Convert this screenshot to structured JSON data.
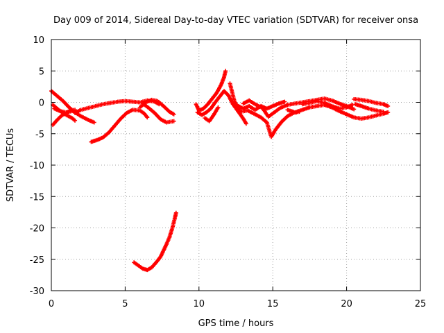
{
  "chart_data": {
    "type": "scatter",
    "title": "Day 009 of 2014, Sidereal Day-to-day VTEC variation (SDTVAR) for receiver onsa",
    "xlabel": "GPS time / hours",
    "ylabel": "SDTVAR / TECUs",
    "xlim": [
      0,
      25
    ],
    "ylim": [
      -30,
      10
    ],
    "x_ticks": [
      0,
      5,
      10,
      15,
      20,
      25
    ],
    "y_ticks": [
      -30,
      -25,
      -20,
      -15,
      -10,
      -5,
      0,
      5,
      10
    ],
    "x_tick_labels": [
      "0",
      "5",
      "10",
      "15",
      "20",
      "25"
    ],
    "y_tick_labels": [
      "-30",
      "-25",
      "-20",
      "-15",
      "-10",
      "-5",
      "0",
      "5",
      "10"
    ],
    "grid": true,
    "marker": "+",
    "series": [
      {
        "name": "SDTVAR",
        "color": "#ff0000",
        "segments": [
          [
            [
              0.0,
              1.8
            ],
            [
              0.4,
              1.0
            ],
            [
              0.8,
              0.2
            ],
            [
              1.2,
              -0.8
            ],
            [
              1.6,
              -1.6
            ],
            [
              2.0,
              -2.2
            ],
            [
              2.5,
              -2.8
            ],
            [
              2.9,
              -3.2
            ]
          ],
          [
            [
              0.1,
              -0.4
            ],
            [
              0.5,
              -1.2
            ],
            [
              1.0,
              -2.0
            ],
            [
              1.4,
              -2.5
            ],
            [
              1.6,
              -2.9
            ]
          ],
          [
            [
              0.1,
              -3.6
            ],
            [
              0.4,
              -2.8
            ],
            [
              0.7,
              -2.1
            ],
            [
              1.0,
              -1.7
            ],
            [
              1.3,
              -1.3
            ],
            [
              1.6,
              -1.2
            ]
          ],
          [
            [
              0.2,
              -1.0
            ],
            [
              0.6,
              -1.4
            ],
            [
              1.0,
              -1.6
            ],
            [
              1.4,
              -1.4
            ]
          ],
          [
            [
              1.6,
              -1.7
            ],
            [
              2.0,
              -1.2
            ],
            [
              2.5,
              -0.9
            ],
            [
              3.0,
              -0.6
            ],
            [
              3.5,
              -0.3
            ],
            [
              4.0,
              -0.1
            ],
            [
              4.5,
              0.1
            ],
            [
              5.0,
              0.2
            ],
            [
              5.5,
              0.1
            ],
            [
              6.0,
              0.0
            ],
            [
              6.5,
              0.3
            ],
            [
              7.0,
              0.1
            ],
            [
              7.3,
              -0.3
            ]
          ],
          [
            [
              2.7,
              -6.3
            ],
            [
              3.1,
              -6.0
            ],
            [
              3.5,
              -5.6
            ],
            [
              3.9,
              -4.8
            ],
            [
              4.3,
              -3.7
            ],
            [
              4.7,
              -2.6
            ],
            [
              5.1,
              -1.7
            ],
            [
              5.5,
              -1.2
            ],
            [
              6.0,
              -1.3
            ],
            [
              6.3,
              -1.8
            ],
            [
              6.5,
              -2.4
            ]
          ],
          [
            [
              6.0,
              -0.8
            ],
            [
              6.4,
              0.0
            ],
            [
              6.8,
              0.4
            ],
            [
              7.2,
              0.2
            ],
            [
              7.6,
              -0.6
            ],
            [
              8.0,
              -1.5
            ],
            [
              8.3,
              -1.9
            ]
          ],
          [
            [
              6.2,
              -0.2
            ],
            [
              6.6,
              -0.9
            ],
            [
              7.0,
              -1.7
            ],
            [
              7.4,
              -2.7
            ],
            [
              7.8,
              -3.2
            ],
            [
              8.3,
              -3.0
            ]
          ],
          [
            [
              5.6,
              -25.5
            ],
            [
              5.9,
              -26.0
            ],
            [
              6.2,
              -26.5
            ],
            [
              6.5,
              -26.7
            ],
            [
              6.8,
              -26.3
            ],
            [
              7.1,
              -25.5
            ],
            [
              7.4,
              -24.6
            ],
            [
              7.6,
              -23.6
            ],
            [
              7.8,
              -22.6
            ],
            [
              8.0,
              -21.5
            ],
            [
              8.2,
              -20.0
            ],
            [
              8.35,
              -18.6
            ],
            [
              8.45,
              -17.6
            ]
          ],
          [
            [
              9.8,
              -0.3
            ],
            [
              10.0,
              -1.3
            ],
            [
              10.3,
              -1.0
            ],
            [
              10.6,
              -0.3
            ],
            [
              10.9,
              0.6
            ],
            [
              11.2,
              1.5
            ],
            [
              11.5,
              2.8
            ],
            [
              11.7,
              4.0
            ],
            [
              11.8,
              5.0
            ]
          ],
          [
            [
              9.9,
              -1.6
            ],
            [
              10.2,
              -2.0
            ],
            [
              10.5,
              -1.6
            ],
            [
              10.8,
              -1.0
            ],
            [
              11.1,
              0.0
            ],
            [
              11.4,
              0.9
            ],
            [
              11.7,
              1.8
            ],
            [
              12.0,
              1.1
            ],
            [
              12.3,
              -0.3
            ],
            [
              12.7,
              -1.6
            ],
            [
              13.0,
              -2.6
            ],
            [
              13.2,
              -3.4
            ]
          ],
          [
            [
              10.4,
              -2.5
            ],
            [
              10.7,
              -3.0
            ],
            [
              11.0,
              -2.0
            ],
            [
              11.3,
              -0.8
            ]
          ],
          [
            [
              12.1,
              3.0
            ],
            [
              12.4,
              0.2
            ],
            [
              12.8,
              -1.5
            ],
            [
              13.3,
              -1.3
            ],
            [
              13.8,
              -1.9
            ],
            [
              14.2,
              -2.4
            ],
            [
              14.6,
              -3.2
            ],
            [
              14.9,
              -5.5
            ],
            [
              15.2,
              -4.3
            ],
            [
              15.6,
              -3.1
            ],
            [
              16.0,
              -2.2
            ],
            [
              16.4,
              -1.7
            ],
            [
              16.8,
              -1.5
            ]
          ],
          [
            [
              12.6,
              -0.5
            ],
            [
              13.0,
              -1.0
            ],
            [
              13.4,
              -0.6
            ],
            [
              13.8,
              -1.2
            ],
            [
              14.2,
              -0.6
            ],
            [
              14.6,
              -1.0
            ],
            [
              15.0,
              -0.6
            ],
            [
              15.4,
              -0.2
            ],
            [
              15.8,
              0.1
            ]
          ],
          [
            [
              13.0,
              -0.2
            ],
            [
              13.4,
              0.3
            ],
            [
              13.8,
              -0.3
            ],
            [
              14.3,
              -0.9
            ],
            [
              14.7,
              -2.3
            ],
            [
              15.1,
              -1.6
            ],
            [
              15.5,
              -0.9
            ],
            [
              16.0,
              -0.4
            ],
            [
              16.5,
              -0.2
            ],
            [
              17.0,
              0.0
            ],
            [
              17.5,
              0.2
            ],
            [
              18.0,
              0.4
            ],
            [
              18.5,
              0.6
            ],
            [
              19.0,
              0.3
            ],
            [
              19.5,
              -0.2
            ],
            [
              20.0,
              -0.6
            ],
            [
              20.5,
              -1.1
            ]
          ],
          [
            [
              16.0,
              -1.2
            ],
            [
              16.5,
              -1.6
            ],
            [
              17.0,
              -1.2
            ],
            [
              17.5,
              -0.8
            ],
            [
              18.0,
              -0.6
            ],
            [
              18.5,
              -0.4
            ],
            [
              19.0,
              -0.8
            ],
            [
              19.5,
              -1.4
            ],
            [
              20.0,
              -1.9
            ],
            [
              20.5,
              -2.4
            ],
            [
              21.0,
              -2.6
            ],
            [
              21.5,
              -2.4
            ],
            [
              22.0,
              -2.1
            ],
            [
              22.5,
              -1.8
            ],
            [
              22.8,
              -1.6
            ]
          ],
          [
            [
              17.0,
              -0.3
            ],
            [
              17.5,
              -0.1
            ],
            [
              18.0,
              0.2
            ],
            [
              18.5,
              -0.1
            ],
            [
              19.0,
              -0.6
            ],
            [
              19.5,
              -1.0
            ],
            [
              20.0,
              -0.8
            ],
            [
              20.4,
              -0.4
            ]
          ],
          [
            [
              20.5,
              0.5
            ],
            [
              21.0,
              0.4
            ],
            [
              21.5,
              0.2
            ],
            [
              22.0,
              -0.1
            ],
            [
              22.5,
              -0.3
            ],
            [
              22.8,
              -0.6
            ]
          ],
          [
            [
              20.6,
              -0.3
            ],
            [
              21.0,
              -0.6
            ],
            [
              21.5,
              -1.0
            ],
            [
              22.0,
              -1.3
            ],
            [
              22.5,
              -1.5
            ]
          ]
        ]
      }
    ]
  }
}
